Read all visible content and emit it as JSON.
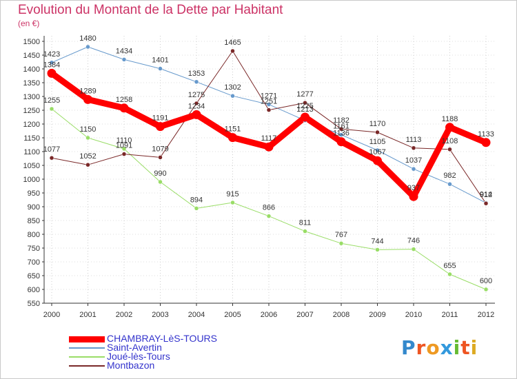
{
  "title": "Evolution du Montant de la Dette par Habitant",
  "subtitle": "(en €)",
  "brand": {
    "letters": [
      "P",
      "r",
      "o",
      "x",
      "i",
      "t",
      "i"
    ],
    "colors": [
      "#3388cc",
      "#ee5522",
      "#ee9922",
      "#3399dd",
      "#66bb33",
      "#ee5522",
      "#ddaa22"
    ]
  },
  "chart_data": {
    "type": "line",
    "title": "Evolution du Montant de la Dette par Habitant",
    "ylabel": "(en €)",
    "ylim": [
      550,
      1500
    ],
    "yticks": [
      550,
      600,
      650,
      700,
      750,
      800,
      850,
      900,
      950,
      1000,
      1050,
      1100,
      1150,
      1200,
      1250,
      1300,
      1350,
      1400,
      1450,
      1500
    ],
    "x": [
      "2000",
      "2001",
      "2002",
      "2003",
      "2004",
      "2005",
      "2006",
      "2007",
      "2008",
      "2009",
      "2010",
      "2011",
      "2012"
    ],
    "grid": true,
    "legend_position": "bottom",
    "series": [
      {
        "name": "CHAMBRAY-LèS-TOURS",
        "color": "#ff0000",
        "width": 9,
        "values": [
          1384,
          1289,
          1258,
          1191,
          1234,
          1151,
          1117,
          1225,
          1136,
          1067,
          937,
          1188,
          1133
        ]
      },
      {
        "name": "Saint-Avertin",
        "color": "#6699cc",
        "width": 1,
        "values": [
          1423,
          1480,
          1434,
          1401,
          1353,
          1302,
          1271,
          1213,
          1161,
          1105,
          1037,
          982,
          914
        ]
      },
      {
        "name": "Joué-lès-Tours",
        "color": "#99dd66",
        "width": 1,
        "values": [
          1255,
          1150,
          1110,
          990,
          894,
          915,
          866,
          811,
          767,
          744,
          746,
          655,
          600
        ]
      },
      {
        "name": "Montbazon",
        "color": "#7a2828",
        "width": 1,
        "values": [
          1077,
          1052,
          1091,
          1079,
          1275,
          1465,
          1251,
          1277,
          1182,
          1170,
          1113,
          1108,
          912
        ]
      }
    ],
    "label_offsets": [
      [
        [
          0,
          0
        ],
        [
          0,
          0
        ],
        [
          0,
          0
        ],
        [
          0,
          0
        ],
        [
          0,
          0
        ],
        [
          0,
          0
        ],
        [
          0,
          0
        ],
        [
          0,
          -4
        ],
        [
          0,
          0
        ],
        [
          0,
          0
        ],
        [
          0,
          0
        ],
        [
          0,
          0
        ],
        [
          0,
          0
        ]
      ],
      [
        [
          0,
          0
        ],
        [
          0,
          0
        ],
        [
          0,
          0
        ],
        [
          0,
          0
        ],
        [
          0,
          0
        ],
        [
          0,
          0
        ],
        [
          0,
          0
        ],
        [
          0,
          -4
        ],
        [
          0,
          0
        ],
        [
          0,
          0
        ],
        [
          0,
          0
        ],
        [
          0,
          0
        ],
        [
          0,
          0
        ]
      ],
      [
        [
          0,
          0
        ],
        [
          0,
          0
        ],
        [
          0,
          0
        ],
        [
          0,
          0
        ],
        [
          0,
          0
        ],
        [
          0,
          0
        ],
        [
          0,
          0
        ],
        [
          0,
          0
        ],
        [
          0,
          0
        ],
        [
          0,
          0
        ],
        [
          0,
          0
        ],
        [
          0,
          0
        ],
        [
          0,
          0
        ]
      ],
      [
        [
          0,
          0
        ],
        [
          0,
          0
        ],
        [
          0,
          0
        ],
        [
          0,
          0
        ],
        [
          0,
          0
        ],
        [
          0,
          0
        ],
        [
          0,
          0
        ],
        [
          0,
          0
        ],
        [
          0,
          0
        ],
        [
          0,
          0
        ],
        [
          0,
          0
        ],
        [
          0,
          0
        ],
        [
          0,
          0
        ]
      ]
    ]
  }
}
